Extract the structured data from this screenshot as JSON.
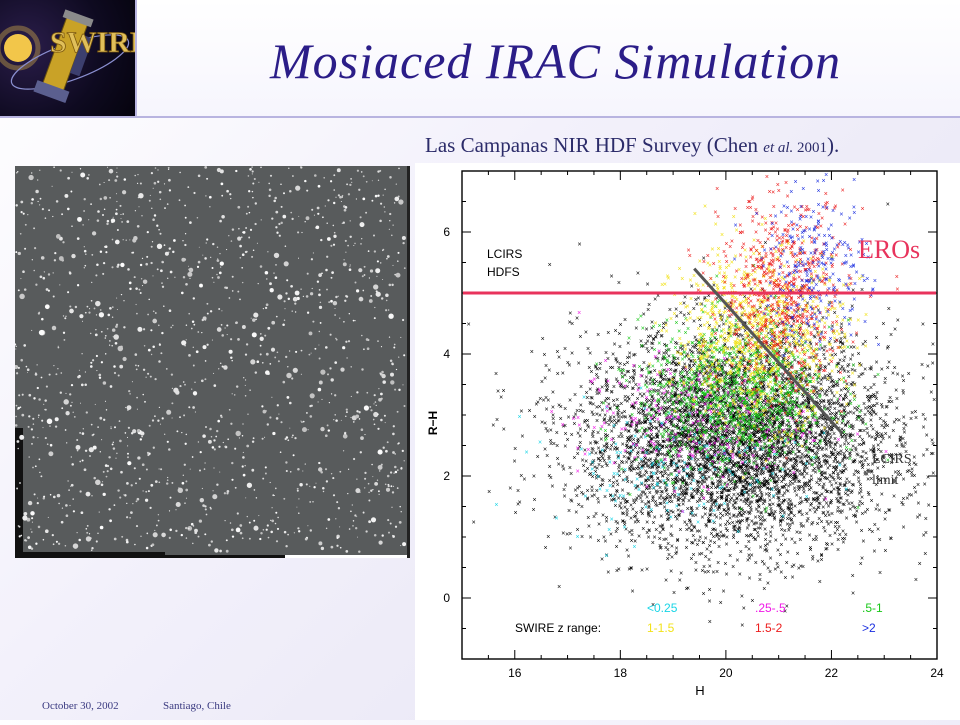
{
  "slide": {
    "title": "Mosiaced IRAC Simulation",
    "logo_text": "SWIRE",
    "caption_main": "Las Campanas NIR HDF Survey (Chen ",
    "caption_etal": "et al.",
    "caption_year": " 2001",
    "caption_end": ").",
    "footer_date": "October 30, 2002",
    "footer_place": "Santiago, Chile"
  },
  "colors": {
    "title": "#2b1d88",
    "ero_line": "#e8335c",
    "ero_label": "#e8335c",
    "limit_line": "#555555"
  },
  "chart_data": {
    "type": "scatter",
    "xlabel": "H",
    "ylabel": "R−H",
    "xlim": [
      15,
      24
    ],
    "ylim": [
      -1,
      7
    ],
    "xticks": [
      "16",
      "18",
      "20",
      "22",
      "24"
    ],
    "yticks": [
      "0",
      "2",
      "4",
      "6"
    ],
    "annotations": {
      "survey_label": [
        "LCIRS",
        "HDFS"
      ],
      "ero_label": "EROs",
      "ero_threshold": 5,
      "limit_label": [
        "LCIRS",
        "limit"
      ],
      "limit_line": [
        [
          19.4,
          5.4
        ],
        [
          22.2,
          2.7
        ]
      ]
    },
    "legend": {
      "title": "SWIRE z range:",
      "entries": [
        {
          "label": "<0.25",
          "color": "#19d5e6"
        },
        {
          "label": ".25-.5",
          "color": "#f019e6"
        },
        {
          "label": ".5-1",
          "color": "#1ac81a"
        },
        {
          "label": "1-1.5",
          "color": "#f2e21a"
        },
        {
          "label": "1.5-2",
          "color": "#ec1c1c"
        },
        {
          "label": ">2",
          "color": "#1b2fe0"
        }
      ]
    },
    "series": [
      {
        "name": "LCIRS HDFS",
        "color": "#000000",
        "count": 5200,
        "center": [
          20.2,
          2.6
        ],
        "spread": [
          1.5,
          0.9
        ]
      },
      {
        "name": "<0.25",
        "color": "#19d5e6",
        "count": 160,
        "center": [
          19.0,
          2.2
        ],
        "spread": [
          1.2,
          0.5
        ]
      },
      {
        "name": ".25-.5",
        "color": "#f019e6",
        "count": 260,
        "center": [
          19.4,
          2.9
        ],
        "spread": [
          1.1,
          0.5
        ]
      },
      {
        "name": ".5-1",
        "color": "#1ac81a",
        "count": 1100,
        "center": [
          20.2,
          3.3
        ],
        "spread": [
          0.9,
          0.6
        ]
      },
      {
        "name": "1-1.5",
        "color": "#f2e21a",
        "count": 900,
        "center": [
          20.6,
          4.3
        ],
        "spread": [
          0.8,
          0.7
        ]
      },
      {
        "name": "1.5-2",
        "color": "#ec1c1c",
        "count": 650,
        "center": [
          21.1,
          5.0
        ],
        "spread": [
          0.6,
          0.8
        ]
      },
      {
        "name": ">2",
        "color": "#1b2fe0",
        "count": 260,
        "center": [
          21.7,
          5.4
        ],
        "spread": [
          0.5,
          0.6
        ]
      }
    ]
  }
}
